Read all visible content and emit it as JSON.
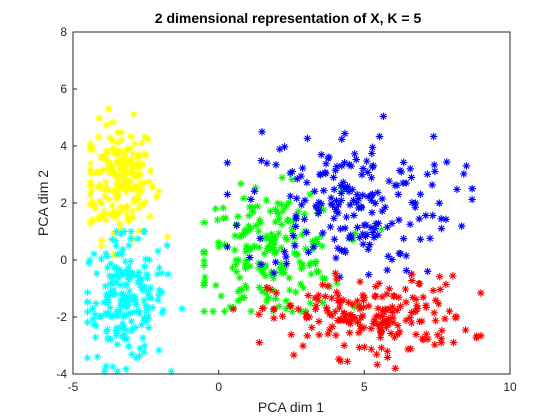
{
  "chart_data": {
    "type": "scatter",
    "title": "2 dimensional representation of X, K = 5",
    "xlabel": "PCA dim 1",
    "ylabel": "PCA dim 2",
    "xlim": [
      -5,
      10
    ],
    "ylim": [
      -4,
      8
    ],
    "xticks": [
      "-5",
      "0",
      "5",
      "10"
    ],
    "yticks": [
      "-4",
      "-2",
      "0",
      "2",
      "4",
      "6",
      "8"
    ],
    "grid": false,
    "legend": "none",
    "marker": "asterisk",
    "series": [
      {
        "color": "#ffff00",
        "center": [
          -3.4,
          2.8
        ],
        "spread": [
          0.6,
          1.0
        ],
        "x_range": [
          -4.4,
          -1.2
        ],
        "y_range": [
          0.2,
          5.5
        ]
      },
      {
        "color": "#00ffff",
        "center": [
          -3.2,
          -1.4
        ],
        "spread": [
          0.7,
          1.1
        ],
        "x_range": [
          -4.5,
          -0.3
        ],
        "y_range": [
          -3.9,
          1.0
        ]
      },
      {
        "color": "#00ff00",
        "center": [
          1.8,
          0.2
        ],
        "spread": [
          1.2,
          1.1
        ],
        "x_range": [
          -0.5,
          6.0
        ],
        "y_range": [
          -1.8,
          4.2
        ]
      },
      {
        "color": "#0000ff",
        "center": [
          4.5,
          2.0
        ],
        "spread": [
          1.8,
          1.3
        ],
        "x_range": [
          0.3,
          8.7
        ],
        "y_range": [
          -0.6,
          6.3
        ]
      },
      {
        "color": "#ff0000",
        "center": [
          5.2,
          -2.0
        ],
        "spread": [
          1.7,
          0.7
        ],
        "x_range": [
          0.5,
          9.0
        ],
        "y_range": [
          -3.8,
          0.3
        ]
      }
    ]
  }
}
